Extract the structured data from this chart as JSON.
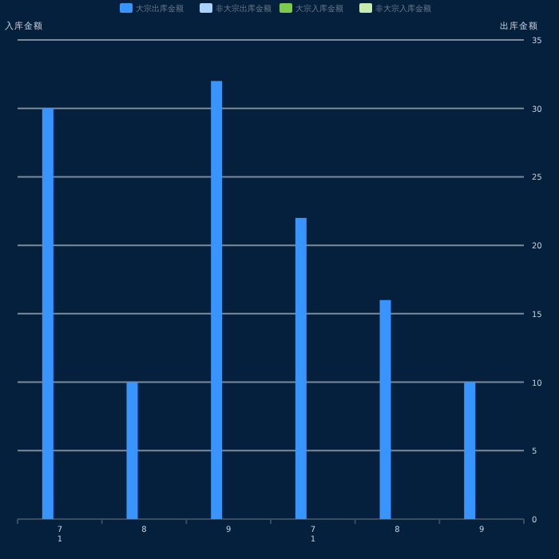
{
  "chart_data": {
    "type": "bar",
    "ylabel": "入库金额",
    "y2label": "出库金额",
    "categories": [
      "7\n1",
      "8",
      "9",
      "7\n1",
      "8",
      "9"
    ],
    "series": [
      {
        "name": "大宗出库金额",
        "color": "#3894ff",
        "axis": "y2",
        "values": [
          30,
          10,
          32,
          22,
          16,
          10
        ]
      },
      {
        "name": "非大宗出库金额",
        "color": "#a9d2ff",
        "axis": "y2",
        "values": [
          null,
          null,
          null,
          null,
          null,
          null
        ]
      },
      {
        "name": "大宗入库金额",
        "color": "#7ccb4c",
        "axis": "y",
        "values": [
          null,
          null,
          null,
          null,
          null,
          null
        ]
      },
      {
        "name": "非大宗入库金额",
        "color": "#c9ecae",
        "axis": "y",
        "values": [
          null,
          null,
          null,
          null,
          null,
          null
        ]
      }
    ],
    "y2lim": [
      0,
      35
    ],
    "y2ticks": [
      0,
      5,
      10,
      15,
      20,
      25,
      30,
      35
    ],
    "grid": "y2",
    "legend": "top"
  }
}
